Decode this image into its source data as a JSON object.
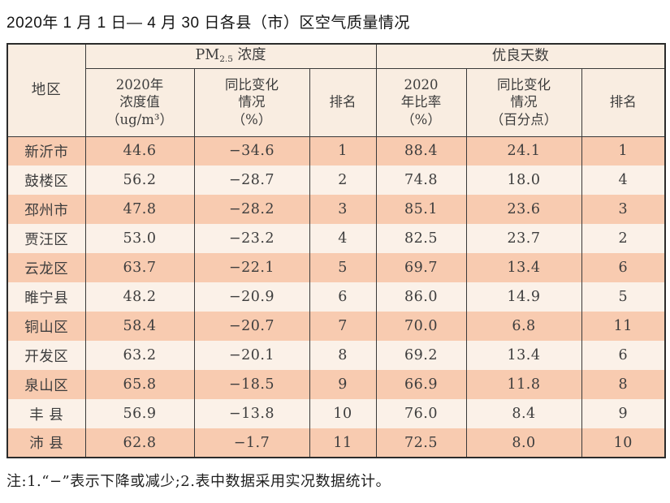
{
  "title": "2020年 1 月 1 日— 4 月 30 日各县（市）区空气质量情况",
  "colors": {
    "row_dark": "#f8cbb0",
    "row_light": "#fbf1e8",
    "header_bg": "#f9ede1",
    "border": "#3a3a3a",
    "text": "#3d3d3d"
  },
  "table": {
    "header": {
      "region_label": "地区",
      "pm_group": {
        "prefix": "PM",
        "sub": "2.5",
        "suffix": " 浓度"
      },
      "good_group_label": "优良天数",
      "pm_value": {
        "line1": "2020年",
        "line2": "浓度值",
        "line3": "（ug/m³）"
      },
      "pm_change": {
        "line1": "同比变化",
        "line2": "情况",
        "line3": "（%）"
      },
      "pm_rank_label": "排名",
      "good_ratio": {
        "line1": "2020",
        "line2": "年比率",
        "line3": "（%）"
      },
      "good_change": {
        "line1": "同比变化",
        "line2": "情况",
        "line3": "（百分点）"
      },
      "good_rank_label": "排名"
    },
    "rows": [
      {
        "region": "新沂市",
        "pm_value": "44.6",
        "pm_change": "−34.6",
        "pm_rank": "1",
        "good_ratio": "88.4",
        "good_change": "24.1",
        "good_rank": "1"
      },
      {
        "region": "鼓楼区",
        "pm_value": "56.2",
        "pm_change": "−28.7",
        "pm_rank": "2",
        "good_ratio": "74.8",
        "good_change": "18.0",
        "good_rank": "4"
      },
      {
        "region": "邳州市",
        "pm_value": "47.8",
        "pm_change": "−28.2",
        "pm_rank": "3",
        "good_ratio": "85.1",
        "good_change": "23.6",
        "good_rank": "3"
      },
      {
        "region": "贾汪区",
        "pm_value": "53.0",
        "pm_change": "−23.2",
        "pm_rank": "4",
        "good_ratio": "82.5",
        "good_change": "23.7",
        "good_rank": "2"
      },
      {
        "region": "云龙区",
        "pm_value": "63.7",
        "pm_change": "−22.1",
        "pm_rank": "5",
        "good_ratio": "69.7",
        "good_change": "13.4",
        "good_rank": "6"
      },
      {
        "region": "睢宁县",
        "pm_value": "48.2",
        "pm_change": "−20.9",
        "pm_rank": "6",
        "good_ratio": "86.0",
        "good_change": "14.9",
        "good_rank": "5"
      },
      {
        "region": "铜山区",
        "pm_value": "58.4",
        "pm_change": "−20.7",
        "pm_rank": "7",
        "good_ratio": "70.0",
        "good_change": "6.8",
        "good_rank": "11"
      },
      {
        "region": "开发区",
        "pm_value": "63.2",
        "pm_change": "−20.1",
        "pm_rank": "8",
        "good_ratio": "69.2",
        "good_change": "13.4",
        "good_rank": "6"
      },
      {
        "region": "泉山区",
        "pm_value": "65.8",
        "pm_change": "−18.5",
        "pm_rank": "9",
        "good_ratio": "66.9",
        "good_change": "11.8",
        "good_rank": "8"
      },
      {
        "region": "丰 县",
        "pm_value": "56.9",
        "pm_change": "−13.8",
        "pm_rank": "10",
        "good_ratio": "76.0",
        "good_change": "8.4",
        "good_rank": "9"
      },
      {
        "region": "沛 县",
        "pm_value": "62.8",
        "pm_change": "−1.7",
        "pm_rank": "11",
        "good_ratio": "72.5",
        "good_change": "8.0",
        "good_rank": "10"
      }
    ]
  },
  "note": "注:1.“−”表示下降或减少;2.表中数据采用实况数据统计。"
}
